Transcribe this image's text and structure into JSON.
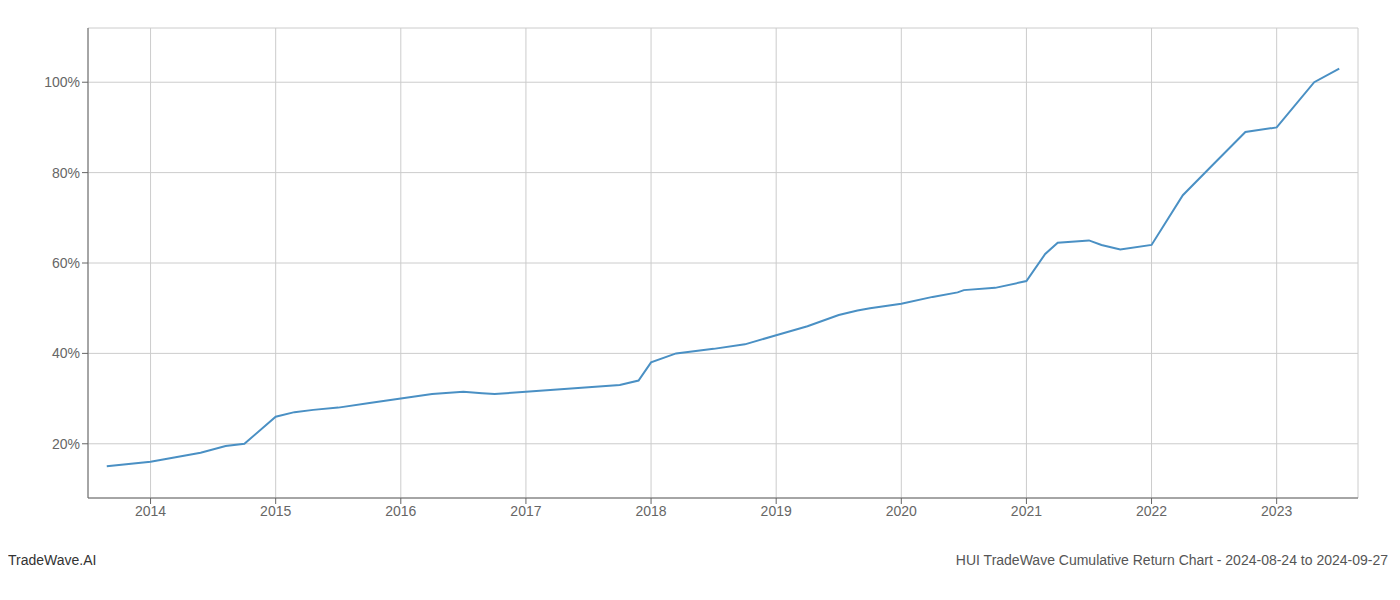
{
  "chart_data": {
    "type": "line",
    "title": "HUI TradeWave Cumulative Return Chart - 2024-08-24 to 2024-09-27",
    "annotations": [
      "TradeWave.AI"
    ],
    "x": [
      2013.65,
      2014.0,
      2014.1,
      2014.2,
      2014.4,
      2014.6,
      2014.75,
      2015.0,
      2015.15,
      2015.3,
      2015.5,
      2015.75,
      2016.0,
      2016.25,
      2016.5,
      2016.65,
      2016.75,
      2017.0,
      2017.25,
      2017.5,
      2017.75,
      2017.9,
      2018.0,
      2018.2,
      2018.5,
      2018.75,
      2019.0,
      2019.25,
      2019.5,
      2019.65,
      2019.75,
      2020.0,
      2020.25,
      2020.45,
      2020.5,
      2020.75,
      2021.0,
      2021.15,
      2021.25,
      2021.5,
      2021.6,
      2021.75,
      2022.0,
      2022.25,
      2022.5,
      2022.75,
      2023.0,
      2023.3,
      2023.5
    ],
    "values": [
      15,
      16,
      16.5,
      17,
      18,
      19.5,
      20,
      26,
      27,
      27.5,
      28,
      29,
      30,
      31,
      31.5,
      31.2,
      31,
      31.5,
      32,
      32.5,
      33,
      34,
      38,
      40,
      41,
      42,
      44,
      46,
      48.5,
      49.5,
      50,
      51,
      52.5,
      53.5,
      54,
      54.5,
      56,
      62,
      64.5,
      65,
      64,
      63,
      64,
      75,
      82,
      89,
      90,
      100,
      103
    ],
    "color": "#4a90c4",
    "xlim": [
      2013.5,
      2023.65
    ],
    "xticks": [
      2014,
      2015,
      2016,
      2017,
      2018,
      2019,
      2020,
      2021,
      2022,
      2023
    ],
    "ylim": [
      8,
      112
    ],
    "yticks": [
      {
        "value": 20,
        "label": "20%"
      },
      {
        "value": 40,
        "label": "40%"
      },
      {
        "value": 60,
        "label": "60%"
      },
      {
        "value": 80,
        "label": "80%"
      },
      {
        "value": 100,
        "label": "100%"
      }
    ],
    "grid": true
  }
}
